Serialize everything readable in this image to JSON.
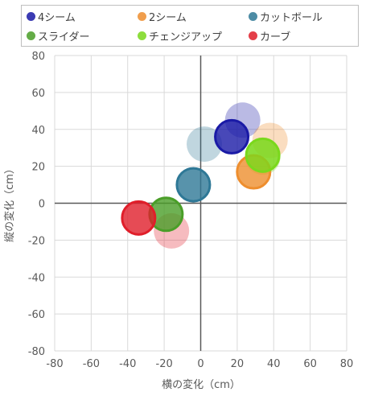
{
  "chart_data": {
    "type": "bubble",
    "xlabel": "横の変化（cm）",
    "ylabel": "縦の変化（cm）",
    "xlim": [
      -80,
      80
    ],
    "ylim": [
      -80,
      80
    ],
    "xticks": [
      "-80",
      "-60",
      "-40",
      "-20",
      "0",
      "20",
      "40",
      "60",
      "80"
    ],
    "yticks": [
      "80",
      "60",
      "40",
      "20",
      "0",
      "-20",
      "-40",
      "-60",
      "-80"
    ],
    "grid": true,
    "legend_position": "top",
    "series": [
      {
        "name": "4シーム",
        "color": "#1a1aa6",
        "points": [
          {
            "x": 23,
            "y": 45,
            "faded": true
          },
          {
            "x": 17,
            "y": 36,
            "faded": false
          }
        ]
      },
      {
        "name": "2シーム",
        "color": "#ee8e2e",
        "points": [
          {
            "x": 38,
            "y": 34,
            "faded": true
          },
          {
            "x": 29,
            "y": 17,
            "faded": false
          }
        ]
      },
      {
        "name": "カットボール",
        "color": "#2e7896",
        "points": [
          {
            "x": 2,
            "y": 32,
            "faded": true
          },
          {
            "x": -4,
            "y": 10,
            "faded": false
          }
        ]
      },
      {
        "name": "スライダー",
        "color": "#4a9e28",
        "points": [
          {
            "x": -19,
            "y": -6,
            "faded": false
          }
        ]
      },
      {
        "name": "チェンジアップ",
        "color": "#7ad81c",
        "points": [
          {
            "x": 34,
            "y": 25,
            "faded": true
          },
          {
            "x": 34,
            "y": 26,
            "faded": false
          }
        ]
      },
      {
        "name": "カーブ",
        "color": "#e01e2a",
        "points": [
          {
            "x": -16,
            "y": -15,
            "faded": true
          },
          {
            "x": -34,
            "y": -8,
            "faded": false
          }
        ]
      }
    ]
  }
}
